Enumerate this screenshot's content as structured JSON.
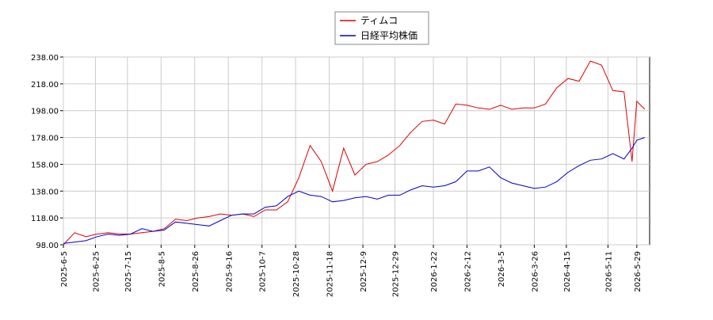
{
  "chart_data": {
    "type": "line",
    "x": [
      "2025-6-5",
      "2025-6-12",
      "2025-6-19",
      "2025-6-26",
      "2025-7-3",
      "2025-7-10",
      "2025-7-17",
      "2025-7-24",
      "2025-7-31",
      "2025-8-7",
      "2025-8-14",
      "2025-8-21",
      "2025-8-28",
      "2025-9-4",
      "2025-9-11",
      "2025-9-18",
      "2025-9-25",
      "2025-10-2",
      "2025-10-9",
      "2025-10-16",
      "2025-10-23",
      "2025-10-30",
      "2025-11-6",
      "2025-11-13",
      "2025-11-20",
      "2025-11-27",
      "2025-12-4",
      "2025-12-11",
      "2025-12-18",
      "2025-12-25",
      "2026-1-1",
      "2026-1-8",
      "2026-1-15",
      "2026-1-22",
      "2026-1-29",
      "2026-2-5",
      "2026-2-12",
      "2026-2-19",
      "2026-2-26",
      "2026-3-5",
      "2026-3-12",
      "2026-3-19",
      "2026-3-26",
      "2026-4-2",
      "2026-4-9",
      "2026-4-16",
      "2026-4-23",
      "2026-4-30",
      "2026-5-7",
      "2026-5-14",
      "2026-5-21",
      "2026-5-26",
      "2026-5-29",
      "2026-6-3"
    ],
    "series": [
      {
        "name": "ティムコ",
        "color": "#dd0000",
        "values": [
          98,
          107,
          104,
          106,
          107,
          106,
          106,
          107,
          108,
          110,
          117,
          116,
          118,
          119,
          121,
          120,
          121,
          119,
          124,
          124,
          130,
          148,
          172,
          160,
          138,
          170,
          150,
          158,
          160,
          165,
          172,
          182,
          190,
          191,
          188,
          203,
          202,
          200,
          199,
          202,
          199,
          200,
          200,
          203,
          215,
          222,
          220,
          235,
          232,
          213,
          212,
          160,
          205,
          199
        ]
      },
      {
        "name": "日経平均株価",
        "color": "#0000cc",
        "values": [
          99,
          100,
          101,
          104,
          106,
          105,
          106,
          110,
          108,
          109,
          115,
          114,
          113,
          112,
          116,
          120,
          121,
          121,
          126,
          127,
          134,
          138,
          135,
          134,
          130,
          131,
          133,
          134,
          132,
          135,
          135,
          139,
          142,
          141,
          142,
          145,
          153,
          153,
          156,
          148,
          144,
          142,
          140,
          141,
          145,
          152,
          157,
          161,
          162,
          166,
          162,
          170,
          176,
          178
        ]
      }
    ],
    "xlim": [
      "2025-6-5",
      "2026-6-6"
    ],
    "xticks": [
      "2025-6-5",
      "2025-6-25",
      "2025-7-15",
      "2025-8-5",
      "2025-8-26",
      "2025-9-16",
      "2025-10-7",
      "2025-10-28",
      "2025-11-18",
      "2025-12-9",
      "2025-12-29",
      "2026-1-22",
      "2026-2-12",
      "2026-3-5",
      "2026-3-26",
      "2026-4-15",
      "2026-5-11",
      "2026-5-29"
    ],
    "ylim": [
      98,
      238
    ],
    "yticks": [
      {
        "value": 98,
        "label": "98.00"
      },
      {
        "value": 118,
        "label": "118.00"
      },
      {
        "value": 138,
        "label": "138.00"
      },
      {
        "value": 158,
        "label": "158.00"
      },
      {
        "value": 178,
        "label": "178.00"
      },
      {
        "value": 198,
        "label": "198.00"
      },
      {
        "value": 218,
        "label": "218.00"
      },
      {
        "value": 238,
        "label": "238.00"
      }
    ],
    "grid": true,
    "legend": "top"
  }
}
